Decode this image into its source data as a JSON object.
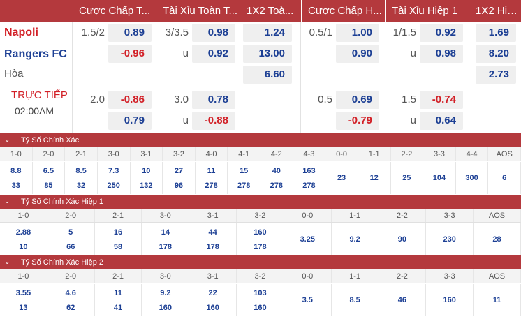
{
  "headers": [
    "Cược Chấp T...",
    "Tài Xỉu Toàn T...",
    "1X2 Toà...",
    "Cược Chấp H...",
    "Tài Xỉu Hiệp 1",
    "1X2 Hiệ..."
  ],
  "match": {
    "home": "Napoli",
    "away": "Rangers FC",
    "draw": "Hòa",
    "status": "TRỰC TIẾP",
    "time": "02:00AM"
  },
  "odds": {
    "r1": {
      "hcap_line": "1.5/2",
      "hcap_home": "0.89",
      "ou_line": "3/3.5",
      "ou_over": "0.98",
      "x12_home": "1.24",
      "h1_hcap_line": "0.5/1",
      "h1_hcap_home": "1.00",
      "h1_ou_line": "1/1.5",
      "h1_ou_over": "0.92",
      "h1_x12_home": "1.69"
    },
    "r2": {
      "hcap_away": "-0.96",
      "ou_u": "u",
      "ou_under": "0.92",
      "x12_away": "13.00",
      "h1_hcap_away": "0.90",
      "h1_ou_u": "u",
      "h1_ou_under": "0.98",
      "h1_x12_away": "8.20"
    },
    "r3": {
      "x12_draw": "6.60",
      "h1_x12_draw": "2.73"
    },
    "r4": {
      "hcap_line": "2.0",
      "hcap_home": "-0.86",
      "ou_line": "3.0",
      "ou_over": "0.78",
      "h1_hcap_line": "0.5",
      "h1_hcap_home": "0.69",
      "h1_ou_line": "1.5",
      "h1_ou_over": "-0.74"
    },
    "r5": {
      "hcap_away": "0.79",
      "ou_u": "u",
      "ou_under": "-0.88",
      "h1_hcap_away": "-0.79",
      "h1_ou_u": "u",
      "h1_ou_under": "0.64"
    }
  },
  "sections": [
    {
      "title": "Tỷ Số Chính Xác",
      "labels": [
        "1-0",
        "2-0",
        "2-1",
        "3-0",
        "3-1",
        "3-2",
        "4-0",
        "4-1",
        "4-2",
        "4-3",
        "0-0",
        "1-1",
        "2-2",
        "3-3",
        "4-4",
        "AOS"
      ],
      "top": [
        "8.8",
        "6.5",
        "8.5",
        "7.3",
        "10",
        "27",
        "11",
        "15",
        "40",
        "163",
        "",
        "",
        "",
        "",
        "",
        ""
      ],
      "bottom": [
        "33",
        "85",
        "32",
        "250",
        "132",
        "96",
        "278",
        "278",
        "278",
        "278",
        "",
        "",
        "",
        "",
        "",
        ""
      ],
      "single": [
        "",
        "",
        "",
        "",
        "",
        "",
        "",
        "",
        "",
        "",
        "23",
        "12",
        "25",
        "104",
        "300",
        "6"
      ]
    },
    {
      "title": "Tỷ Số Chính Xác Hiệp 1",
      "labels": [
        "1-0",
        "2-0",
        "2-1",
        "3-0",
        "3-1",
        "3-2",
        "0-0",
        "1-1",
        "2-2",
        "3-3",
        "AOS"
      ],
      "top": [
        "2.88",
        "5",
        "16",
        "14",
        "44",
        "160",
        "",
        "",
        "",
        "",
        ""
      ],
      "bottom": [
        "10",
        "66",
        "58",
        "178",
        "178",
        "178",
        "",
        "",
        "",
        "",
        ""
      ],
      "single": [
        "",
        "",
        "",
        "",
        "",
        "",
        "3.25",
        "9.2",
        "90",
        "230",
        "28"
      ]
    },
    {
      "title": "Tỷ Số Chính Xác Hiệp 2",
      "labels": [
        "1-0",
        "2-0",
        "2-1",
        "3-0",
        "3-1",
        "3-2",
        "0-0",
        "1-1",
        "2-2",
        "3-3",
        "AOS"
      ],
      "top": [
        "3.55",
        "4.6",
        "11",
        "9.2",
        "22",
        "103",
        "",
        "",
        "",
        "",
        ""
      ],
      "bottom": [
        "13",
        "62",
        "41",
        "160",
        "160",
        "160",
        "",
        "",
        "",
        "",
        ""
      ],
      "single": [
        "",
        "",
        "",
        "",
        "",
        "",
        "3.5",
        "8.5",
        "46",
        "160",
        "11"
      ]
    }
  ],
  "icons": {
    "section_toggle": "chevron-down-icon"
  },
  "colors": {
    "header_bg": "#b4393d",
    "home": "#d21f26",
    "away": "#1c3f94",
    "negative": "#d21f26",
    "positive": "#1c3f94"
  }
}
